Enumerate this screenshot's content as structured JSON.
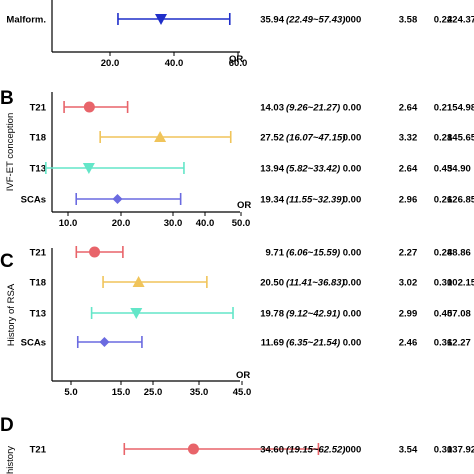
{
  "colors": {
    "T21": "#e8646a",
    "T18": "#f0c45a",
    "T13": "#63e6c8",
    "SCAs": "#6a6ae0",
    "Malform.": "#1f2ec9"
  },
  "chart_data": [
    {
      "type": "forest",
      "panel": "",
      "ylabel": "",
      "or_label": "OR",
      "xlim": [
        0,
        60
      ],
      "xticks": [
        "20.0",
        "40.0",
        "60.0"
      ],
      "tick_values": [
        20,
        40,
        60
      ],
      "rows": [
        {
          "label": "Malform.",
          "or": 35.94,
          "ci_low": 22.49,
          "ci_high": 57.43,
          "marker": "triangle-down",
          "or_text": "35.94",
          "ci_text": "(22.49~57.43)",
          "p": ".000",
          "c1": "3.58",
          "c2": "0.24",
          "c3": "224.37"
        }
      ]
    },
    {
      "type": "forest",
      "panel": "B",
      "ylabel": "IVF-ET conception",
      "or_label": "OR",
      "xlim": [
        5,
        50
      ],
      "xticks": [
        "10.0",
        "20.0",
        "30.0",
        "40.0",
        "50.0"
      ],
      "tick_values": [
        10,
        20,
        30,
        40,
        50
      ],
      "rows": [
        {
          "label": "T21",
          "or": 14.03,
          "ci_low": 9.26,
          "ci_high": 21.27,
          "marker": "circle",
          "or_text": "14.03",
          "ci_text": "(9.26~21.27)",
          "p": "0.00",
          "c1": "2.64",
          "c2": "0.21",
          "c3": "154.98"
        },
        {
          "label": "T18",
          "or": 27.52,
          "ci_low": 16.07,
          "ci_high": 47.15,
          "marker": "triangle-up",
          "or_text": "27.52",
          "ci_text": "(16.07~47.15)",
          "p": "0.00",
          "c1": "3.32",
          "c2": "0.28",
          "c3": "145.65"
        },
        {
          "label": "T13",
          "or": 13.94,
          "ci_low": 5.82,
          "ci_high": 33.42,
          "marker": "triangle-down",
          "or_text": "13.94",
          "ci_text": "(5.82~33.42)",
          "p": "0.00",
          "c1": "2.64",
          "c2": "0.45",
          "c3": "34.90"
        },
        {
          "label": "SCAs",
          "or": 19.34,
          "ci_low": 11.55,
          "ci_high": 32.39,
          "marker": "diamond",
          "or_text": "19.34",
          "ci_text": "(11.55~32.39)",
          "p": "0.00",
          "c1": "2.96",
          "c2": "0.26",
          "c3": "126.85"
        }
      ]
    },
    {
      "type": "forest",
      "panel": "C",
      "ylabel": "History of RSA",
      "or_label": "OR",
      "xlim": [
        3,
        45
      ],
      "xticks": [
        "5.0",
        "15.0",
        "25.0",
        "35.0",
        "45.0"
      ],
      "tick_values": [
        5,
        15,
        25,
        35,
        45
      ],
      "rows": [
        {
          "label": "T21",
          "or": 9.71,
          "ci_low": 6.06,
          "ci_high": 15.59,
          "marker": "circle",
          "or_text": "9.71",
          "ci_text": "(6.06~15.59)",
          "p": "0.00",
          "c1": "2.27",
          "c2": "0.24",
          "c3": "88.86"
        },
        {
          "label": "T18",
          "or": 20.5,
          "ci_low": 11.41,
          "ci_high": 36.83,
          "marker": "triangle-up",
          "or_text": "20.50",
          "ci_text": "(11.41~36.83)",
          "p": "0.00",
          "c1": "3.02",
          "c2": "0.30",
          "c3": "102.15"
        },
        {
          "label": "T13",
          "or": 19.78,
          "ci_low": 9.12,
          "ci_high": 42.91,
          "marker": "triangle-down",
          "or_text": "19.78",
          "ci_text": "(9.12~42.91)",
          "p": "0.00",
          "c1": "2.99",
          "c2": "0.40",
          "c3": "57.08"
        },
        {
          "label": "SCAs",
          "or": 11.69,
          "ci_low": 6.35,
          "ci_high": 21.54,
          "marker": "diamond",
          "or_text": "11.69",
          "ci_text": "(6.35~21.54)",
          "p": "0.00",
          "c1": "2.46",
          "c2": "0.31",
          "c3": "62.27"
        }
      ]
    },
    {
      "type": "forest",
      "panel": "D",
      "ylabel": "history",
      "or_label": "",
      "xlim": [
        3,
        45
      ],
      "xticks": [],
      "tick_values": [],
      "rows": [
        {
          "label": "T21",
          "or": 34.6,
          "ci_low": 19.15,
          "ci_high": 62.52,
          "marker": "circle",
          "or_text": "34.60",
          "ci_text": "(19.15~62.52)",
          "p": ".000",
          "c1": "3.54",
          "c2": "0.30",
          "c3": "137.92"
        }
      ]
    }
  ]
}
